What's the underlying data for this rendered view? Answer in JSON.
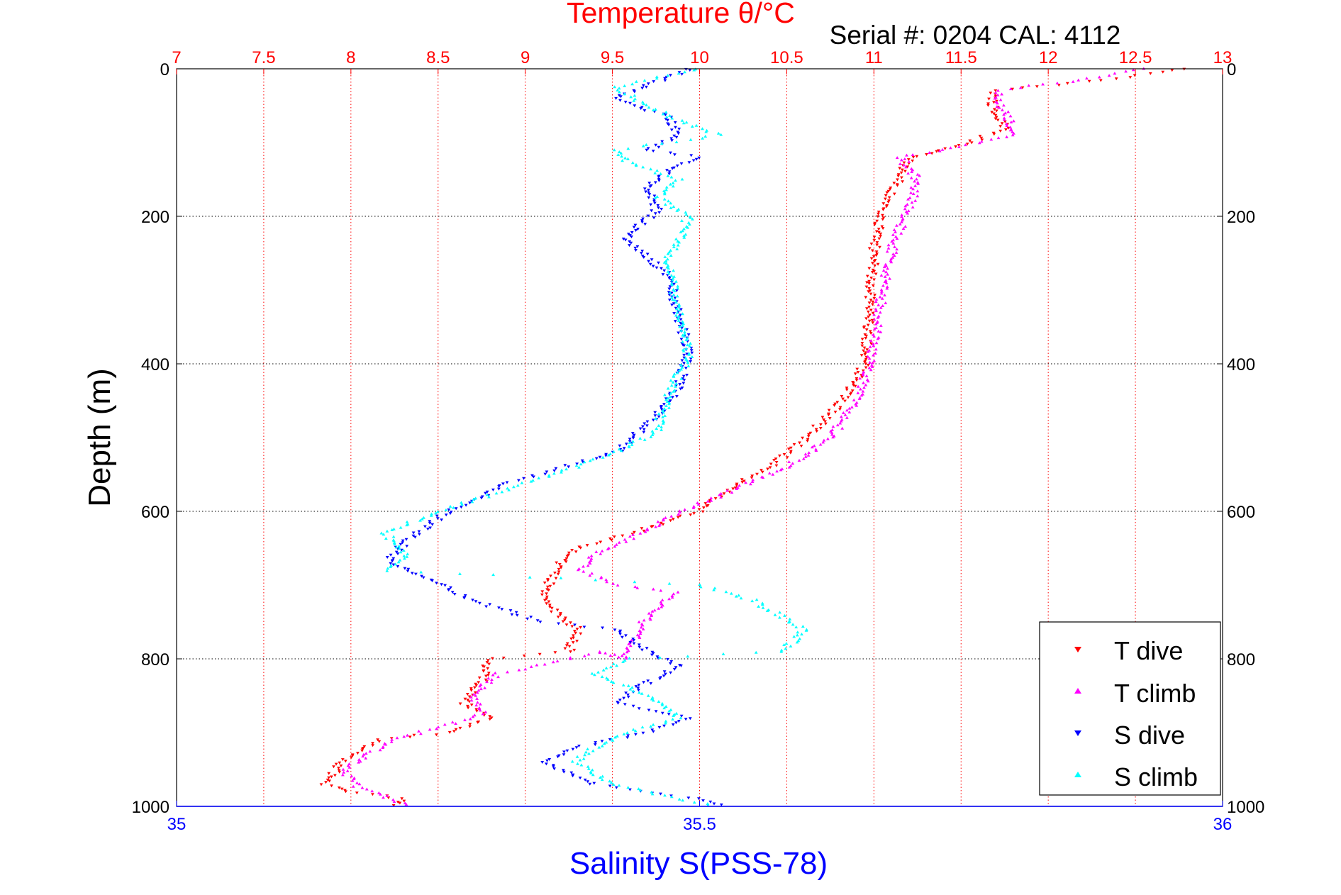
{
  "chart_data": {
    "type": "scatter",
    "title": "Temperature θ/°C",
    "subtitle": "Serial #: 0204  CAL: 4112",
    "ylabel": "Depth (m)",
    "xlabel": "Salinity S(PSS-78)",
    "ylim": [
      0,
      1000
    ],
    "y_reversed": true,
    "temperature_axis": {
      "position": "top",
      "range": [
        7,
        13
      ],
      "ticks": [
        7,
        7.5,
        8,
        8.5,
        9,
        9.5,
        10,
        10.5,
        11,
        11.5,
        12,
        12.5,
        13
      ],
      "tick_labels": [
        "7",
        "7.5",
        "8",
        "8.5",
        "9",
        "9.5",
        "10",
        "10.5",
        "11",
        "11.5",
        "12",
        "12.5",
        "13"
      ],
      "color": "#ff0000",
      "grid": true
    },
    "salinity_axis": {
      "position": "bottom",
      "range": [
        35,
        36
      ],
      "ticks": [
        35,
        35.5,
        36
      ],
      "tick_labels": [
        "35",
        "35.5",
        "36"
      ],
      "color": "#0000ff"
    },
    "depth_axis": {
      "ticks": [
        0,
        200,
        400,
        600,
        800,
        1000
      ],
      "tick_labels": [
        "0",
        "200",
        "400",
        "600",
        "800",
        "1000"
      ],
      "grid": true
    },
    "legend_position": "bottom-right",
    "legend": [
      "T dive",
      "T climb",
      "S dive",
      "S climb"
    ],
    "series": [
      {
        "name": "T dive",
        "axis": "temperature",
        "color": "#ff0000",
        "marker": "triangle-down",
        "points": [
          [
            12.8,
            0
          ],
          [
            12.3,
            15
          ],
          [
            11.7,
            30
          ],
          [
            11.68,
            50
          ],
          [
            11.75,
            80
          ],
          [
            11.55,
            100
          ],
          [
            11.4,
            110
          ],
          [
            11.2,
            120
          ],
          [
            11.15,
            150
          ],
          [
            11.05,
            185
          ],
          [
            11.0,
            250
          ],
          [
            10.98,
            320
          ],
          [
            10.95,
            400
          ],
          [
            10.82,
            450
          ],
          [
            10.62,
            500
          ],
          [
            10.4,
            540
          ],
          [
            10.2,
            565
          ],
          [
            10.0,
            600
          ],
          [
            9.6,
            630
          ],
          [
            9.3,
            650
          ],
          [
            9.2,
            670
          ],
          [
            9.15,
            690
          ],
          [
            9.1,
            720
          ],
          [
            9.3,
            760
          ],
          [
            9.25,
            790
          ],
          [
            8.8,
            800
          ],
          [
            8.75,
            830
          ],
          [
            8.65,
            860
          ],
          [
            8.8,
            880
          ],
          [
            8.55,
            900
          ],
          [
            8.15,
            910
          ],
          [
            7.95,
            940
          ],
          [
            7.85,
            970
          ],
          [
            8.0,
            980
          ],
          [
            8.3,
            990
          ],
          [
            8.25,
            1000
          ]
        ]
      },
      {
        "name": "T climb",
        "axis": "temperature",
        "color": "#ff00ff",
        "marker": "triangle-up",
        "points": [
          [
            12.55,
            0
          ],
          [
            12.2,
            15
          ],
          [
            11.7,
            30
          ],
          [
            11.75,
            60
          ],
          [
            11.82,
            90
          ],
          [
            11.4,
            110
          ],
          [
            11.15,
            120
          ],
          [
            11.25,
            150
          ],
          [
            11.2,
            190
          ],
          [
            11.12,
            230
          ],
          [
            11.05,
            300
          ],
          [
            11.0,
            380
          ],
          [
            10.9,
            450
          ],
          [
            10.75,
            500
          ],
          [
            10.5,
            540
          ],
          [
            10.2,
            570
          ],
          [
            9.9,
            600
          ],
          [
            9.65,
            630
          ],
          [
            9.4,
            660
          ],
          [
            9.3,
            680
          ],
          [
            9.55,
            700
          ],
          [
            9.85,
            710
          ],
          [
            9.7,
            740
          ],
          [
            9.65,
            770
          ],
          [
            9.55,
            800
          ],
          [
            9.45,
            790
          ],
          [
            8.85,
            820
          ],
          [
            8.7,
            850
          ],
          [
            8.75,
            875
          ],
          [
            8.55,
            890
          ],
          [
            8.25,
            910
          ],
          [
            8.1,
            930
          ],
          [
            7.95,
            950
          ],
          [
            8.05,
            975
          ],
          [
            8.35,
            1000
          ]
        ]
      },
      {
        "name": "S dive",
        "axis": "salinity",
        "color": "#0000ff",
        "marker": "triangle-down",
        "points": [
          [
            35.49,
            0
          ],
          [
            35.42,
            40
          ],
          [
            35.47,
            65
          ],
          [
            35.48,
            90
          ],
          [
            35.45,
            110
          ],
          [
            35.5,
            120
          ],
          [
            35.47,
            140
          ],
          [
            35.45,
            160
          ],
          [
            35.46,
            190
          ],
          [
            35.43,
            230
          ],
          [
            35.47,
            280
          ],
          [
            35.48,
            340
          ],
          [
            35.49,
            380
          ],
          [
            35.48,
            430
          ],
          [
            35.46,
            470
          ],
          [
            35.42,
            520
          ],
          [
            35.32,
            560
          ],
          [
            35.26,
            600
          ],
          [
            35.22,
            640
          ],
          [
            35.2,
            670
          ],
          [
            35.24,
            690
          ],
          [
            35.28,
            720
          ],
          [
            35.35,
            750
          ],
          [
            35.42,
            760
          ],
          [
            35.45,
            790
          ],
          [
            35.48,
            810
          ],
          [
            35.44,
            840
          ],
          [
            35.42,
            860
          ],
          [
            35.49,
            880
          ],
          [
            35.45,
            900
          ],
          [
            35.38,
            920
          ],
          [
            35.35,
            940
          ],
          [
            35.4,
            970
          ],
          [
            35.5,
            990
          ],
          [
            35.53,
            1000
          ]
        ]
      },
      {
        "name": "S climb",
        "axis": "salinity",
        "color": "#00ffff",
        "marker": "triangle-up",
        "points": [
          [
            35.5,
            0
          ],
          [
            35.42,
            25
          ],
          [
            35.45,
            50
          ],
          [
            35.48,
            70
          ],
          [
            35.52,
            90
          ],
          [
            35.42,
            110
          ],
          [
            35.43,
            125
          ],
          [
            35.48,
            150
          ],
          [
            35.46,
            175
          ],
          [
            35.49,
            200
          ],
          [
            35.47,
            260
          ],
          [
            35.48,
            330
          ],
          [
            35.49,
            390
          ],
          [
            35.47,
            440
          ],
          [
            35.46,
            490
          ],
          [
            35.42,
            520
          ],
          [
            35.34,
            560
          ],
          [
            35.25,
            600
          ],
          [
            35.2,
            630
          ],
          [
            35.22,
            660
          ],
          [
            35.2,
            680
          ],
          [
            35.5,
            700
          ],
          [
            35.55,
            720
          ],
          [
            35.6,
            760
          ],
          [
            35.58,
            790
          ],
          [
            35.43,
            800
          ],
          [
            35.4,
            820
          ],
          [
            35.45,
            850
          ],
          [
            35.48,
            880
          ],
          [
            35.43,
            900
          ],
          [
            35.4,
            920
          ],
          [
            35.38,
            940
          ],
          [
            35.42,
            970
          ],
          [
            35.48,
            990
          ],
          [
            35.52,
            1000
          ]
        ]
      }
    ]
  }
}
